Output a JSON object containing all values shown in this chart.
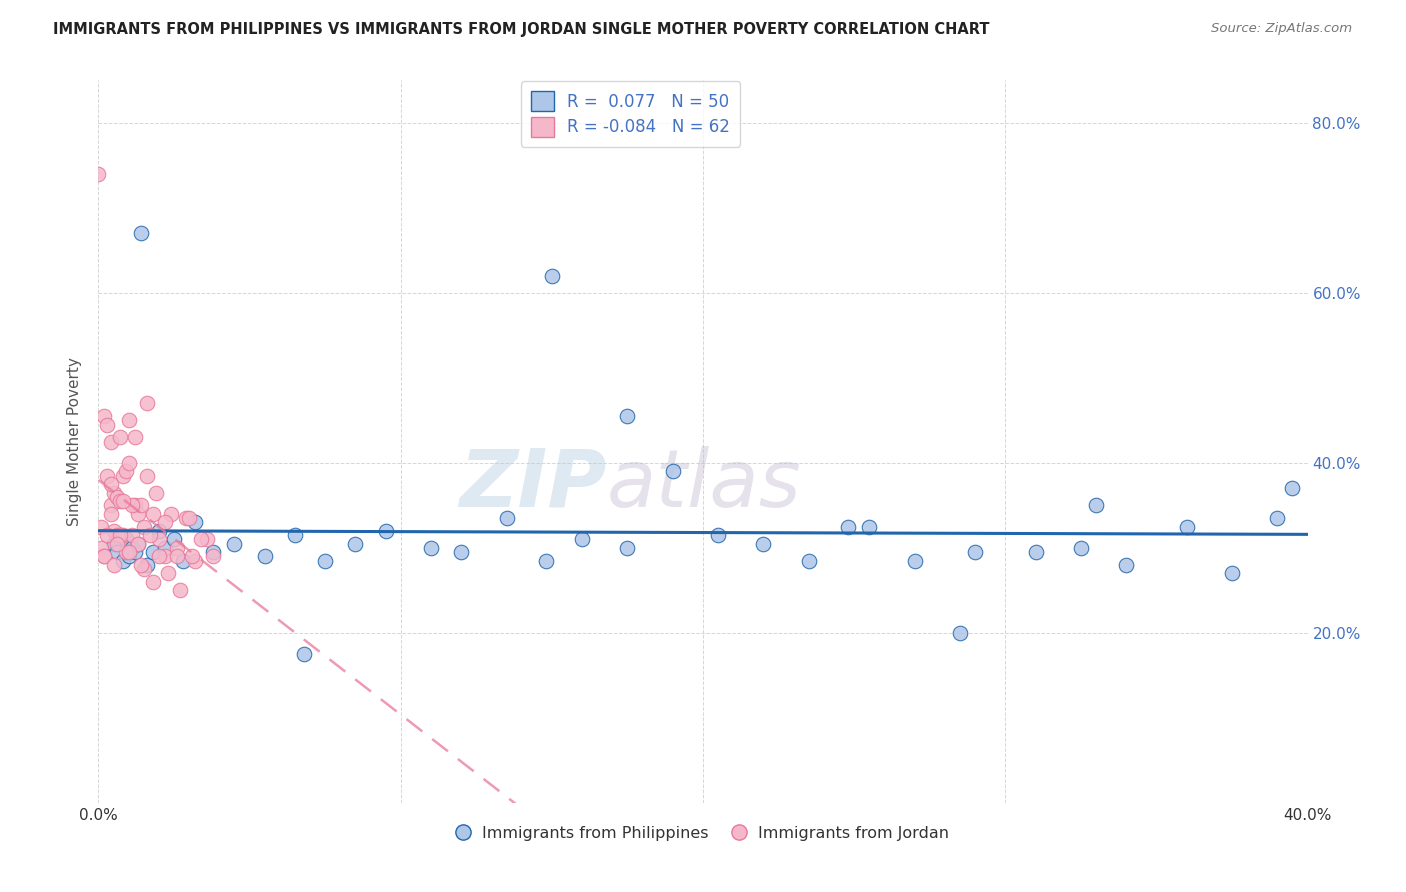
{
  "title": "IMMIGRANTS FROM PHILIPPINES VS IMMIGRANTS FROM JORDAN SINGLE MOTHER POVERTY CORRELATION CHART",
  "source": "Source: ZipAtlas.com",
  "ylabel": "Single Mother Poverty",
  "xlim": [
    0.0,
    0.4
  ],
  "ylim": [
    0.0,
    0.85
  ],
  "color_philippines": "#aec6e8",
  "color_jordan": "#f5b8cb",
  "line_color_philippines": "#2166ac",
  "line_color_jordan": "#e8789a",
  "watermark_zip": "ZIP",
  "watermark_atlas": "atlas",
  "philippines_x": [
    0.005,
    0.006,
    0.007,
    0.008,
    0.009,
    0.01,
    0.011,
    0.012,
    0.013,
    0.014,
    0.016,
    0.018,
    0.02,
    0.022,
    0.025,
    0.028,
    0.032,
    0.038,
    0.045,
    0.055,
    0.065,
    0.075,
    0.085,
    0.095,
    0.11,
    0.12,
    0.135,
    0.148,
    0.16,
    0.175,
    0.15,
    0.19,
    0.205,
    0.22,
    0.235,
    0.255,
    0.27,
    0.29,
    0.175,
    0.31,
    0.325,
    0.34,
    0.36,
    0.375,
    0.33,
    0.285,
    0.248,
    0.068,
    0.39,
    0.395
  ],
  "philippines_y": [
    0.305,
    0.295,
    0.315,
    0.285,
    0.31,
    0.29,
    0.3,
    0.295,
    0.305,
    0.67,
    0.28,
    0.295,
    0.32,
    0.3,
    0.31,
    0.285,
    0.33,
    0.295,
    0.305,
    0.29,
    0.315,
    0.285,
    0.305,
    0.32,
    0.3,
    0.295,
    0.335,
    0.285,
    0.31,
    0.3,
    0.62,
    0.39,
    0.315,
    0.305,
    0.285,
    0.325,
    0.285,
    0.295,
    0.455,
    0.295,
    0.3,
    0.28,
    0.325,
    0.27,
    0.35,
    0.2,
    0.325,
    0.175,
    0.335,
    0.37
  ],
  "jordan_x": [
    0.0,
    0.001,
    0.001,
    0.002,
    0.002,
    0.003,
    0.003,
    0.004,
    0.004,
    0.005,
    0.005,
    0.006,
    0.006,
    0.007,
    0.007,
    0.008,
    0.008,
    0.009,
    0.01,
    0.011,
    0.012,
    0.013,
    0.014,
    0.015,
    0.016,
    0.018,
    0.02,
    0.022,
    0.024,
    0.026,
    0.029,
    0.032,
    0.036,
    0.01,
    0.012,
    0.016,
    0.019,
    0.022,
    0.026,
    0.03,
    0.034,
    0.038,
    0.002,
    0.003,
    0.004,
    0.005,
    0.007,
    0.009,
    0.011,
    0.013,
    0.015,
    0.017,
    0.02,
    0.004,
    0.006,
    0.008,
    0.01,
    0.014,
    0.018,
    0.023,
    0.027,
    0.031
  ],
  "jordan_y": [
    0.74,
    0.325,
    0.3,
    0.455,
    0.29,
    0.445,
    0.385,
    0.425,
    0.35,
    0.32,
    0.365,
    0.36,
    0.315,
    0.43,
    0.355,
    0.385,
    0.315,
    0.39,
    0.4,
    0.315,
    0.35,
    0.34,
    0.35,
    0.325,
    0.385,
    0.34,
    0.31,
    0.29,
    0.34,
    0.3,
    0.335,
    0.285,
    0.31,
    0.45,
    0.43,
    0.47,
    0.365,
    0.33,
    0.29,
    0.335,
    0.31,
    0.29,
    0.29,
    0.315,
    0.34,
    0.28,
    0.315,
    0.295,
    0.35,
    0.305,
    0.275,
    0.315,
    0.29,
    0.375,
    0.305,
    0.355,
    0.295,
    0.28,
    0.26,
    0.27,
    0.25,
    0.29
  ]
}
